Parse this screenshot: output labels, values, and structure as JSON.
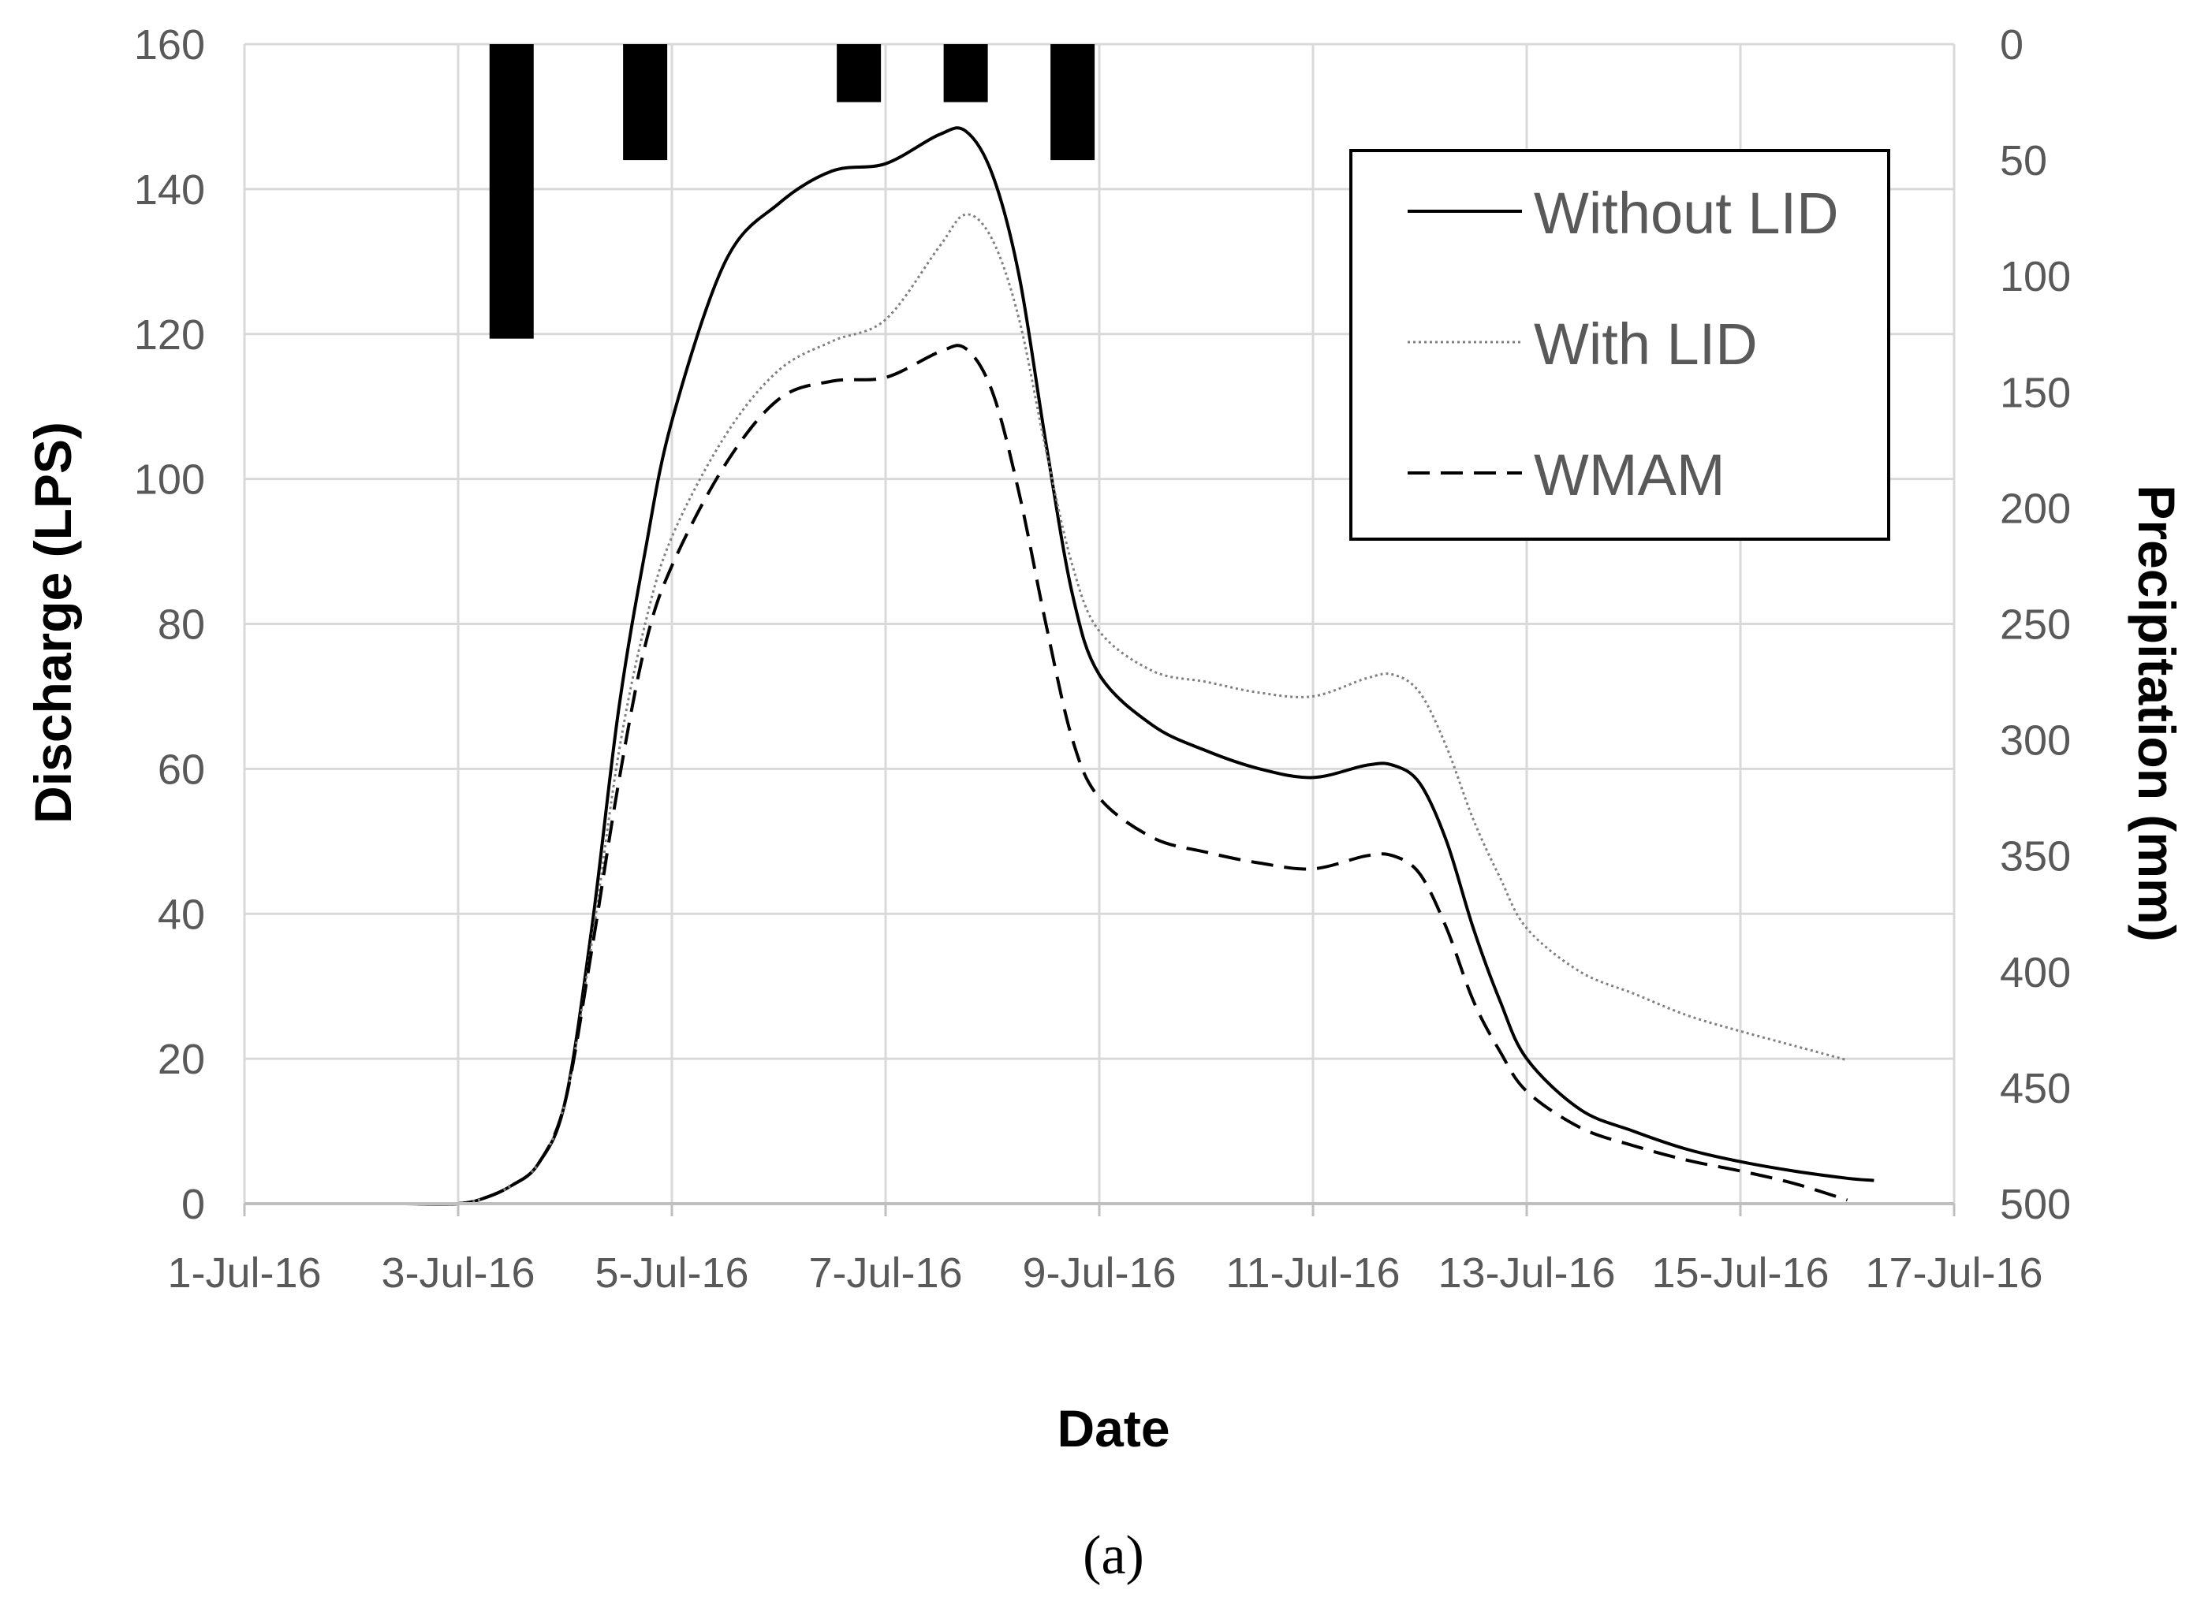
{
  "chart_data": {
    "type": "line",
    "xlabel": "Date",
    "ylabel": "Discharge (LPS)",
    "y2label": "Precipitation (mm)",
    "panel_label": "(a)",
    "x_ticks": [
      "1-Jul-16",
      "3-Jul-16",
      "5-Jul-16",
      "7-Jul-16",
      "9-Jul-16",
      "11-Jul-16",
      "13-Jul-16",
      "15-Jul-16",
      "17-Jul-16"
    ],
    "xlim": [
      "2016-07-01",
      "2016-07-17"
    ],
    "ylim": [
      0,
      160
    ],
    "y_ticks": [
      "0",
      "20",
      "40",
      "60",
      "80",
      "100",
      "120",
      "140",
      "160"
    ],
    "y2lim": [
      0,
      500
    ],
    "y2_inverted": true,
    "y2_ticks": [
      "0",
      "50",
      "100",
      "150",
      "200",
      "250",
      "300",
      "350",
      "400",
      "450",
      "500"
    ],
    "grid": true,
    "legend_position": "top-right",
    "series": [
      {
        "name": "Without LID",
        "style": "solid",
        "color": "#000000",
        "points": [
          [
            "2016-07-02",
            0
          ],
          [
            "2016-07-02 12:00",
            0
          ],
          [
            "2016-07-03",
            0
          ],
          [
            "2016-07-03 06:00",
            0.8
          ],
          [
            "2016-07-03 12:00",
            2.5
          ],
          [
            "2016-07-03 18:00",
            5.5
          ],
          [
            "2016-07-04",
            14
          ],
          [
            "2016-07-04 06:00",
            38
          ],
          [
            "2016-07-04 12:00",
            68
          ],
          [
            "2016-07-04 18:00",
            90
          ],
          [
            "2016-07-05",
            108
          ],
          [
            "2016-07-05 12:00",
            130
          ],
          [
            "2016-07-06",
            138
          ],
          [
            "2016-07-06 12:00",
            142.5
          ],
          [
            "2016-07-07",
            143.5
          ],
          [
            "2016-07-07 12:00",
            147.5
          ],
          [
            "2016-07-07 18:00",
            148
          ],
          [
            "2016-07-08",
            142
          ],
          [
            "2016-07-08 06:00",
            128
          ],
          [
            "2016-07-08 12:00",
            105
          ],
          [
            "2016-07-08 18:00",
            84
          ],
          [
            "2016-07-09",
            73
          ],
          [
            "2016-07-09 12:00",
            66
          ],
          [
            "2016-07-10",
            62.5
          ],
          [
            "2016-07-10 12:00",
            60
          ],
          [
            "2016-07-11",
            58.8
          ],
          [
            "2016-07-11 12:00",
            60.5
          ],
          [
            "2016-07-11 18:00",
            60.5
          ],
          [
            "2016-07-12",
            58
          ],
          [
            "2016-07-12 06:00",
            50
          ],
          [
            "2016-07-12 12:00",
            38
          ],
          [
            "2016-07-12 18:00",
            28
          ],
          [
            "2016-07-13",
            20
          ],
          [
            "2016-07-13 12:00",
            13
          ],
          [
            "2016-07-14",
            10
          ],
          [
            "2016-07-14 12:00",
            7.5
          ],
          [
            "2016-07-15",
            5.8
          ],
          [
            "2016-07-15 12:00",
            4.5
          ],
          [
            "2016-07-16",
            3.5
          ],
          [
            "2016-07-16 06:00",
            3.2
          ]
        ]
      },
      {
        "name": "With LID",
        "style": "dotted",
        "color": "#808080",
        "points": [
          [
            "2016-07-02",
            0
          ],
          [
            "2016-07-02 12:00",
            0
          ],
          [
            "2016-07-03",
            0
          ],
          [
            "2016-07-03 06:00",
            0.8
          ],
          [
            "2016-07-03 12:00",
            2.5
          ],
          [
            "2016-07-03 18:00",
            5.5
          ],
          [
            "2016-07-04",
            14
          ],
          [
            "2016-07-04 06:00",
            36
          ],
          [
            "2016-07-04 12:00",
            62
          ],
          [
            "2016-07-04 18:00",
            80
          ],
          [
            "2016-07-05",
            92
          ],
          [
            "2016-07-05 12:00",
            106
          ],
          [
            "2016-07-06",
            115
          ],
          [
            "2016-07-06 12:00",
            119
          ],
          [
            "2016-07-07",
            122
          ],
          [
            "2016-07-07 12:00",
            132
          ],
          [
            "2016-07-07 18:00",
            136.5
          ],
          [
            "2016-07-08",
            133
          ],
          [
            "2016-07-08 06:00",
            122
          ],
          [
            "2016-07-08 12:00",
            104
          ],
          [
            "2016-07-08 18:00",
            88
          ],
          [
            "2016-07-09",
            79
          ],
          [
            "2016-07-09 12:00",
            73.5
          ],
          [
            "2016-07-10",
            72
          ],
          [
            "2016-07-10 12:00",
            70.5
          ],
          [
            "2016-07-11",
            70
          ],
          [
            "2016-07-11 12:00",
            72.5
          ],
          [
            "2016-07-11 18:00",
            73
          ],
          [
            "2016-07-12",
            70.5
          ],
          [
            "2016-07-12 06:00",
            63
          ],
          [
            "2016-07-12 12:00",
            53
          ],
          [
            "2016-07-12 18:00",
            45
          ],
          [
            "2016-07-13",
            38
          ],
          [
            "2016-07-13 12:00",
            32
          ],
          [
            "2016-07-14",
            29
          ],
          [
            "2016-07-14 12:00",
            26
          ],
          [
            "2016-07-15",
            23.8
          ],
          [
            "2016-07-15 12:00",
            21.8
          ],
          [
            "2016-07-16",
            19.8
          ]
        ]
      },
      {
        "name": "WMAM",
        "style": "dashed",
        "color": "#000000",
        "points": [
          [
            "2016-07-02",
            0
          ],
          [
            "2016-07-02 12:00",
            0
          ],
          [
            "2016-07-03",
            0
          ],
          [
            "2016-07-03 06:00",
            0.8
          ],
          [
            "2016-07-03 12:00",
            2.5
          ],
          [
            "2016-07-03 18:00",
            5.5
          ],
          [
            "2016-07-04",
            14
          ],
          [
            "2016-07-04 06:00",
            35
          ],
          [
            "2016-07-04 12:00",
            58
          ],
          [
            "2016-07-04 18:00",
            77
          ],
          [
            "2016-07-05",
            88
          ],
          [
            "2016-07-05 12:00",
            102
          ],
          [
            "2016-07-06",
            111
          ],
          [
            "2016-07-06 12:00",
            113.5
          ],
          [
            "2016-07-07",
            114
          ],
          [
            "2016-07-07 12:00",
            117.5
          ],
          [
            "2016-07-07 18:00",
            118
          ],
          [
            "2016-07-08",
            112
          ],
          [
            "2016-07-08 06:00",
            98
          ],
          [
            "2016-07-08 12:00",
            80
          ],
          [
            "2016-07-08 18:00",
            64
          ],
          [
            "2016-07-09",
            56
          ],
          [
            "2016-07-09 12:00",
            50.5
          ],
          [
            "2016-07-10",
            48.5
          ],
          [
            "2016-07-10 12:00",
            47
          ],
          [
            "2016-07-11",
            46.2
          ],
          [
            "2016-07-11 12:00",
            48
          ],
          [
            "2016-07-11 18:00",
            48
          ],
          [
            "2016-07-12",
            45.5
          ],
          [
            "2016-07-12 06:00",
            38
          ],
          [
            "2016-07-12 12:00",
            28
          ],
          [
            "2016-07-12 18:00",
            21
          ],
          [
            "2016-07-13",
            15.5
          ],
          [
            "2016-07-13 12:00",
            10.5
          ],
          [
            "2016-07-14",
            8
          ],
          [
            "2016-07-14 12:00",
            6
          ],
          [
            "2016-07-15",
            4.5
          ],
          [
            "2016-07-15 12:00",
            2.8
          ],
          [
            "2016-07-16",
            0.5
          ]
        ]
      }
    ],
    "precipitation": {
      "color": "#000000",
      "bars": [
        {
          "date": "2016-07-03 12:00",
          "value": 127
        },
        {
          "date": "2016-07-04 18:00",
          "value": 50
        },
        {
          "date": "2016-07-06 18:00",
          "value": 25
        },
        {
          "date": "2016-07-07 18:00",
          "value": 25
        },
        {
          "date": "2016-07-08 18:00",
          "value": 50
        }
      ]
    }
  }
}
